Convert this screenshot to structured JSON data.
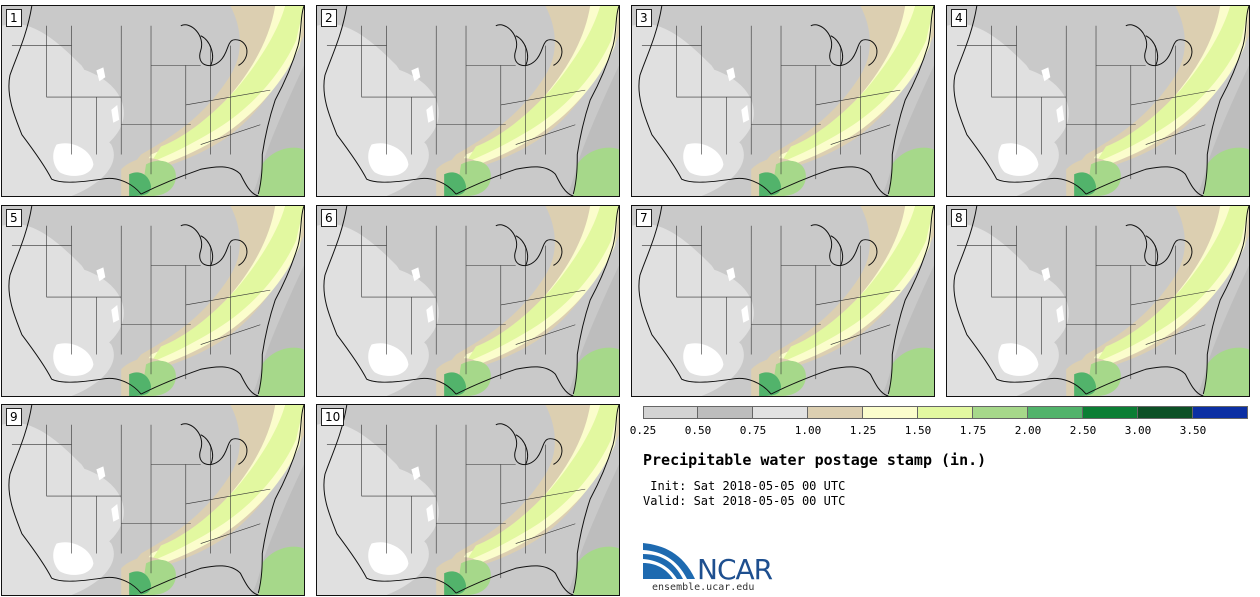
{
  "figure": {
    "title": "Precipitable water postage stamp (in.)",
    "init_line": " Init: Sat 2018-05-05 00 UTC",
    "valid_line": "Valid: Sat 2018-05-05 00 UTC"
  },
  "panels": [
    "1",
    "2",
    "3",
    "4",
    "5",
    "6",
    "7",
    "8",
    "9",
    "10"
  ],
  "legend": {
    "tick_labels": [
      "0.25",
      "0.50",
      "0.75",
      "1.00",
      "1.25",
      "1.50",
      "1.75",
      "2.00",
      "2.50",
      "3.00",
      "3.50"
    ],
    "colors": [
      "#d3d3d3",
      "#bdbdbd",
      "#e2e2e2",
      "#dccfb1",
      "#fbfdcc",
      "#e2f8a0",
      "#a6d88a",
      "#52b36b",
      "#0b7e34",
      "#0c5025",
      "#0b2fa3"
    ]
  },
  "branding": {
    "logo_text": "NCAR",
    "site": "ensemble.ucar.edu",
    "colors": {
      "logo_blue": "#1e6ab0",
      "logo_dark": "#1e4f8f"
    }
  },
  "map_colors": {
    "land_base": "#c9c9c9",
    "ocean": "#bdbdbd",
    "dry_light": "#e0e0e0",
    "dry_white": "#ffffff",
    "tan": "#dccfb1",
    "pale": "#fbfdcc",
    "light_green": "#e2f8a0",
    "mid_green": "#a6d88a",
    "green": "#52b36b",
    "border": "#333333",
    "coast": "#111111"
  }
}
